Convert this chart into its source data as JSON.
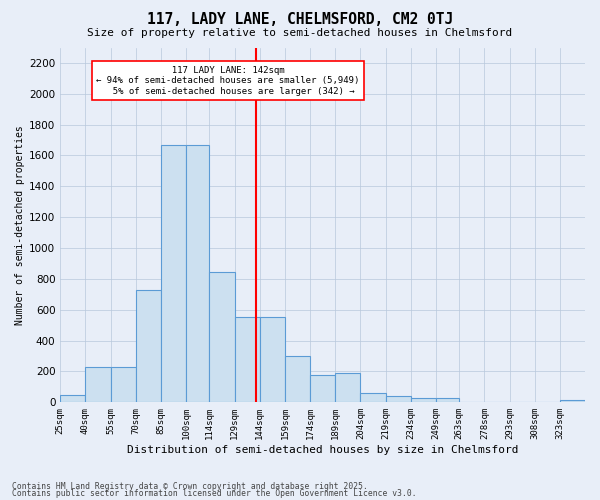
{
  "title": "117, LADY LANE, CHELMSFORD, CM2 0TJ",
  "subtitle": "Size of property relative to semi-detached houses in Chelmsford",
  "xlabel": "Distribution of semi-detached houses by size in Chelmsford",
  "ylabel": "Number of semi-detached properties",
  "bins": [
    "25sqm",
    "40sqm",
    "55sqm",
    "70sqm",
    "85sqm",
    "100sqm",
    "114sqm",
    "129sqm",
    "144sqm",
    "159sqm",
    "174sqm",
    "189sqm",
    "204sqm",
    "219sqm",
    "234sqm",
    "249sqm",
    "263sqm",
    "278sqm",
    "293sqm",
    "308sqm",
    "323sqm"
  ],
  "bin_edges": [
    25,
    40,
    55,
    70,
    85,
    100,
    114,
    129,
    144,
    159,
    174,
    189,
    204,
    219,
    234,
    249,
    263,
    278,
    293,
    308,
    323
  ],
  "values": [
    50,
    230,
    230,
    730,
    1670,
    1670,
    845,
    555,
    555,
    300,
    180,
    190,
    60,
    40,
    30,
    25,
    0,
    0,
    0,
    0,
    15
  ],
  "property_value": 142,
  "property_label": "117 LADY LANE: 142sqm",
  "pct_smaller": 94,
  "pct_larger": 5,
  "n_smaller": 5949,
  "n_larger": 342,
  "bar_color": "#cce0f0",
  "bar_edge_color": "#5b9bd5",
  "vline_color": "red",
  "fig_background": "#e8eef8",
  "ax_background": "#e8eef8",
  "grid_color": "#b8c8dc",
  "footer1": "Contains HM Land Registry data © Crown copyright and database right 2025.",
  "footer2": "Contains public sector information licensed under the Open Government Licence v3.0.",
  "ylim": [
    0,
    2300
  ],
  "yticks": [
    0,
    200,
    400,
    600,
    800,
    1000,
    1200,
    1400,
    1600,
    1800,
    2000,
    2200
  ]
}
